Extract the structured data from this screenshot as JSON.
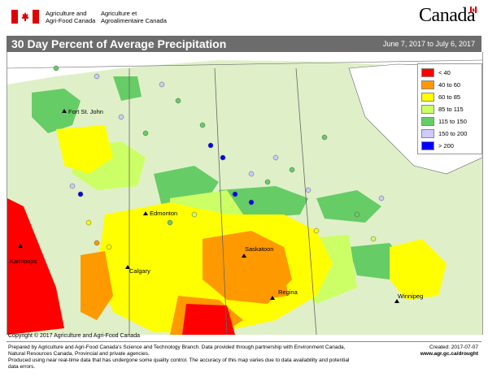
{
  "header": {
    "department_en_line1": "Agriculture and",
    "department_en_line2": "Agri-Food Canada",
    "department_fr_line1": "Agriculture et",
    "department_fr_line2": "Agroalimentaire Canada",
    "wordmark": "Canada"
  },
  "map": {
    "title": "30 Day Percent of Average Precipitation",
    "date_range": "June 7, 2017 to July 6, 2017",
    "cities": [
      {
        "name": "Fort St. John"
      },
      {
        "name": "Edmonton"
      },
      {
        "name": "Kamloops"
      },
      {
        "name": "Calgary"
      },
      {
        "name": "Saskatoon"
      },
      {
        "name": "Regina"
      },
      {
        "name": "Winnipeg"
      }
    ]
  },
  "legend": {
    "items": [
      {
        "label": "< 40",
        "color": "#ff0000"
      },
      {
        "label": "40 to 60",
        "color": "#ff9900"
      },
      {
        "label": "60 to 85",
        "color": "#ffff00"
      },
      {
        "label": "85 to 115",
        "color": "#ccff66"
      },
      {
        "label": "115 to 150",
        "color": "#66cc66"
      },
      {
        "label": "150 to 200",
        "color": "#ccccff"
      },
      {
        "label": "> 200",
        "color": "#0000ff"
      }
    ]
  },
  "footer": {
    "copyright": "Copyright © 2017 Agriculture and Agri-Food Canada",
    "line1": "Prepared by Agriculture and Agri-Food Canada's Science and Technology Branch. Data provided through partnership with Environment Canada,",
    "line2": "Natural Resources Canada, Provincial and private agencies.",
    "line3": "Produced using near real-time data that has undergone some quality control. The accuracy of this map varies due to data availability and potential data errors.",
    "created": "Created: 2017-07-07",
    "url": "www.agr.gc.ca/drought"
  }
}
